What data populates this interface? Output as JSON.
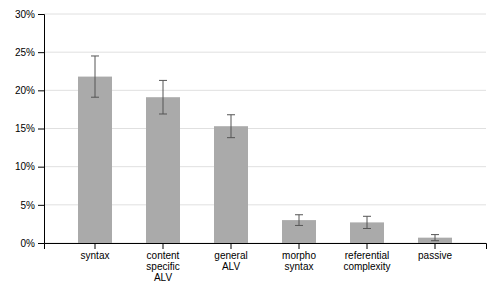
{
  "chart_data": {
    "type": "bar",
    "categories": [
      "syntax",
      "content\nspecific\nALV",
      "general\nALV",
      "morpho\nsyntax",
      "referential\ncomplexity",
      "passive"
    ],
    "values": [
      0.218,
      0.191,
      0.153,
      0.03,
      0.027,
      0.007
    ],
    "errors": [
      0.027,
      0.022,
      0.015,
      0.007,
      0.008,
      0.004
    ],
    "color": "#aaaaaa",
    "ylim": [
      0,
      0.3
    ],
    "yticks": [
      {
        "value": 0,
        "label": "0%"
      },
      {
        "value": 0.05,
        "label": "5%"
      },
      {
        "value": 0.1,
        "label": "10%"
      },
      {
        "value": 0.15,
        "label": "15%"
      },
      {
        "value": 0.2,
        "label": "20%"
      },
      {
        "value": 0.25,
        "label": "25%"
      },
      {
        "value": 0.3,
        "label": "30%"
      }
    ],
    "grid": true
  }
}
